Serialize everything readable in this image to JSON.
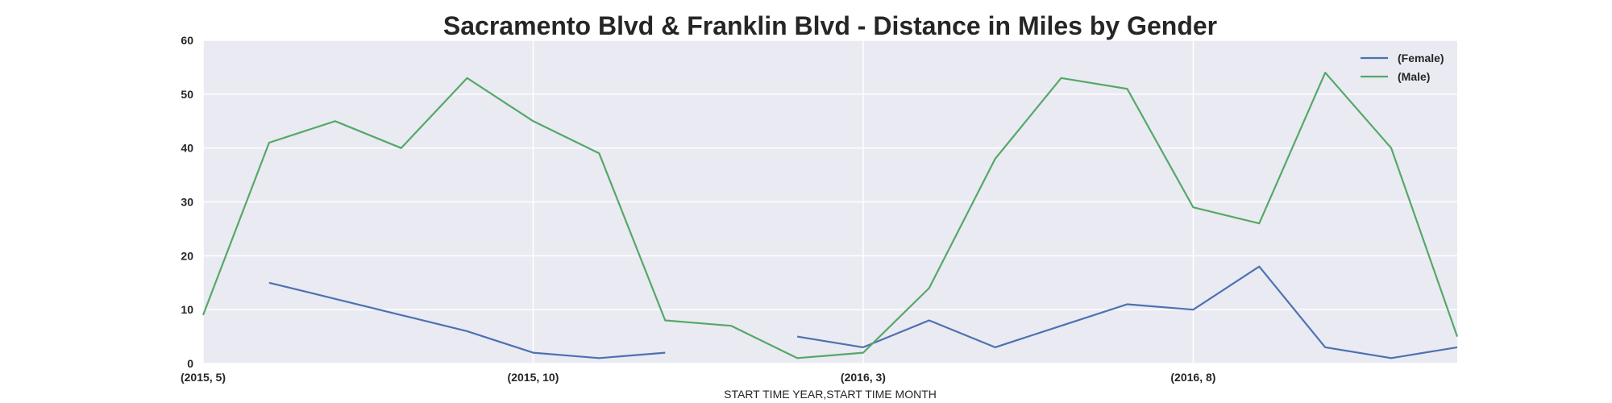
{
  "chart_data": {
    "type": "line",
    "title": "Sacramento Blvd & Franklin Blvd - Distance in Miles by Gender",
    "xlabel": "START TIME YEAR,START TIME MONTH",
    "ylabel": "",
    "x": [
      "(2015, 5)",
      "(2015, 6)",
      "(2015, 7)",
      "(2015, 8)",
      "(2015, 9)",
      "(2015, 10)",
      "(2015, 11)",
      "(2015, 12)",
      "(2016, 1)",
      "(2016, 2)",
      "(2016, 3)",
      "(2016, 4)",
      "(2016, 5)",
      "(2016, 6)",
      "(2016, 7)",
      "(2016, 8)",
      "(2016, 9)",
      "(2016, 10)",
      "(2016, 11)",
      "(2016, 12)"
    ],
    "xticks": [
      "(2015, 5)",
      "(2015, 10)",
      "(2016, 3)",
      "(2016, 8)"
    ],
    "ylim": [
      0,
      60
    ],
    "yticks": [
      0,
      10,
      20,
      30,
      40,
      50,
      60
    ],
    "grid": true,
    "legend_position": "top-right",
    "series": [
      {
        "name": "(Female)",
        "color": "#4c72b0",
        "values": [
          null,
          15,
          12,
          9,
          6,
          2,
          1,
          2,
          null,
          5,
          3,
          8,
          3,
          7,
          11,
          10,
          18,
          3,
          1,
          3
        ]
      },
      {
        "name": "(Male)",
        "color": "#55a868",
        "values": [
          9,
          41,
          45,
          40,
          53,
          45,
          39,
          8,
          7,
          1,
          2,
          14,
          38,
          53,
          51,
          29,
          26,
          54,
          40,
          5
        ]
      }
    ],
    "background_color": "#eaeaf2",
    "grid_color": "#ffffff"
  }
}
